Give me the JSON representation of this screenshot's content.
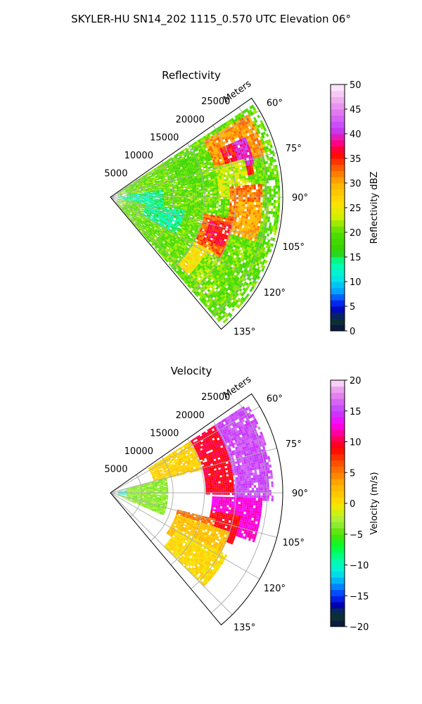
{
  "figure": {
    "title": "SKYLER-HU  SN14_202  1115_0.570 UTC Elevation 06°"
  },
  "chart_data": [
    {
      "type": "heatmap",
      "title": "Reflectivity",
      "radial_axis_label": "Meters",
      "radial_ticks": [
        5000,
        10000,
        15000,
        20000,
        25000
      ],
      "radial_tick_labels": [
        "5000",
        "10000",
        "15000",
        "20000",
        "25000"
      ],
      "radial_range": [
        0,
        27500
      ],
      "azimuth_range_deg": [
        55,
        140
      ],
      "azimuth_ticks_deg": [
        60,
        75,
        90,
        105,
        120,
        135
      ],
      "azimuth_tick_labels": [
        "60°",
        "75°",
        "90°",
        "105°",
        "120°",
        "135°"
      ],
      "grid": true,
      "colorbar": {
        "label": "Reflectivity dBZ",
        "range": [
          0,
          50
        ],
        "ticks": [
          0,
          5,
          10,
          15,
          20,
          25,
          30,
          35,
          40,
          45,
          50
        ],
        "tick_labels": [
          "0",
          "5",
          "10",
          "15",
          "20",
          "25",
          "30",
          "35",
          "40",
          "45",
          "50"
        ],
        "stops": [
          {
            "v": 0,
            "c": "#0a0f4a"
          },
          {
            "v": 2.5,
            "c": "#0d3a2a"
          },
          {
            "v": 4,
            "c": "#0000b0"
          },
          {
            "v": 6,
            "c": "#0030ff"
          },
          {
            "v": 8,
            "c": "#00a0ff"
          },
          {
            "v": 11,
            "c": "#00f0e0"
          },
          {
            "v": 14,
            "c": "#00ffa0"
          },
          {
            "v": 16,
            "c": "#30d000"
          },
          {
            "v": 20,
            "c": "#50e000"
          },
          {
            "v": 23,
            "c": "#d0f000"
          },
          {
            "v": 26,
            "c": "#ffe000"
          },
          {
            "v": 30,
            "c": "#ffb000"
          },
          {
            "v": 33,
            "c": "#ff6000"
          },
          {
            "v": 36,
            "c": "#ff0000"
          },
          {
            "v": 38,
            "c": "#ff0080"
          },
          {
            "v": 41,
            "c": "#c040ff"
          },
          {
            "v": 44,
            "c": "#e070f0"
          },
          {
            "v": 47,
            "c": "#f0b0f0"
          },
          {
            "v": 50,
            "c": "#fff0ff"
          }
        ]
      },
      "features": [
        {
          "az": [
            57,
            140
          ],
          "r": [
            0.7,
            27000
          ],
          "v": 20,
          "label": "background"
        },
        {
          "az": [
            75,
            118
          ],
          "r": [
            0.7,
            2500
          ],
          "v": 21
        },
        {
          "az": [
            82,
            100
          ],
          "r": [
            0.7,
            8500
          ],
          "v": 14
        },
        {
          "az": [
            100,
            118
          ],
          "r": [
            5500,
            12000
          ],
          "v": 14
        },
        {
          "az": [
            62,
            80
          ],
          "r": [
            11000,
            15000
          ],
          "v": 19
        },
        {
          "az": [
            59,
            74
          ],
          "r": [
            17000,
            25500
          ],
          "v": 31
        },
        {
          "az": [
            66,
            80
          ],
          "r": [
            19000,
            23000
          ],
          "v": 36
        },
        {
          "az": [
            66,
            76
          ],
          "r": [
            21000,
            23500
          ],
          "v": 40
        },
        {
          "az": [
            74,
            90
          ],
          "r": [
            17000,
            22000
          ],
          "v": 23
        },
        {
          "az": [
            85,
            100
          ],
          "r": [
            19000,
            24000
          ],
          "v": 32
        },
        {
          "az": [
            92,
            106
          ],
          "r": [
            20000,
            24000
          ],
          "v": 30
        },
        {
          "az": [
            100,
            118
          ],
          "r": [
            15000,
            20000
          ],
          "v": 33
        },
        {
          "az": [
            103,
            113
          ],
          "r": [
            16000,
            19500
          ],
          "v": 36
        },
        {
          "az": [
            118,
            134
          ],
          "r": [
            15000,
            18500
          ],
          "v": 26
        },
        {
          "az": [
            120,
            134
          ],
          "r": [
            17500,
            22000
          ],
          "v": 21
        }
      ]
    },
    {
      "type": "heatmap",
      "title": "Velocity",
      "radial_axis_label": "Meters",
      "radial_ticks": [
        5000,
        10000,
        15000,
        20000,
        25000
      ],
      "radial_tick_labels": [
        "5000",
        "10000",
        "15000",
        "20000",
        "25000"
      ],
      "radial_range": [
        0,
        27500
      ],
      "azimuth_range_deg": [
        55,
        140
      ],
      "azimuth_ticks_deg": [
        60,
        75,
        90,
        105,
        120,
        135
      ],
      "azimuth_tick_labels": [
        "60°",
        "75°",
        "90°",
        "105°",
        "120°",
        "135°"
      ],
      "grid": true,
      "colorbar": {
        "label": "Velocity (m/s)",
        "range": [
          -20,
          20
        ],
        "ticks": [
          -20,
          -15,
          -10,
          -5,
          0,
          5,
          10,
          15,
          20
        ],
        "tick_labels": [
          "−20",
          "−15",
          "−10",
          "−5",
          "0",
          "5",
          "10",
          "15",
          "20"
        ],
        "stops": [
          {
            "v": -20,
            "c": "#0a0f4a"
          },
          {
            "v": -18,
            "c": "#0d3a2a"
          },
          {
            "v": -16.5,
            "c": "#0000b0"
          },
          {
            "v": -15,
            "c": "#0030ff"
          },
          {
            "v": -13,
            "c": "#00a0ff"
          },
          {
            "v": -11,
            "c": "#00f0e0"
          },
          {
            "v": -9,
            "c": "#00ffa0"
          },
          {
            "v": -7,
            "c": "#00ff30"
          },
          {
            "v": -5,
            "c": "#50e000"
          },
          {
            "v": -3,
            "c": "#a0f040"
          },
          {
            "v": -1,
            "c": "#e0f000"
          },
          {
            "v": 0,
            "c": "#ffe000"
          },
          {
            "v": 3,
            "c": "#ffb000"
          },
          {
            "v": 6,
            "c": "#ff6000"
          },
          {
            "v": 9,
            "c": "#ff0000"
          },
          {
            "v": 11,
            "c": "#ff0080"
          },
          {
            "v": 13,
            "c": "#ff00ff"
          },
          {
            "v": 15,
            "c": "#c040ff"
          },
          {
            "v": 17,
            "c": "#e070f0"
          },
          {
            "v": 19,
            "c": "#f0b0f0"
          },
          {
            "v": 20,
            "c": "#fff0ff"
          }
        ]
      },
      "features": [
        {
          "az": [
            57,
            75
          ],
          "r": [
            7000,
            17000
          ],
          "v": 1,
          "label": "yellow band"
        },
        {
          "az": [
            57,
            90
          ],
          "r": [
            15000,
            19500
          ],
          "v": 9.5
        },
        {
          "az": [
            57,
            92
          ],
          "r": [
            19500,
            26000
          ],
          "v": 15.5
        },
        {
          "az": [
            92,
            108
          ],
          "r": [
            16000,
            24000
          ],
          "v": 12.5
        },
        {
          "az": [
            100,
            112
          ],
          "r": [
            16000,
            21000
          ],
          "v": 9
        },
        {
          "az": [
            104,
            118
          ],
          "r": [
            11000,
            17000
          ],
          "v": 5.5
        },
        {
          "az": [
            108,
            125
          ],
          "r": [
            11000,
            20000
          ],
          "v": 2
        },
        {
          "az": [
            118,
            134
          ],
          "r": [
            12000,
            21000
          ],
          "v": 0.5
        },
        {
          "az": [
            75,
            112
          ],
          "r": [
            0.7,
            9000
          ],
          "v": -3.5
        },
        {
          "az": [
            80,
            100
          ],
          "r": [
            0.7,
            2500
          ],
          "v": -11
        }
      ]
    }
  ]
}
